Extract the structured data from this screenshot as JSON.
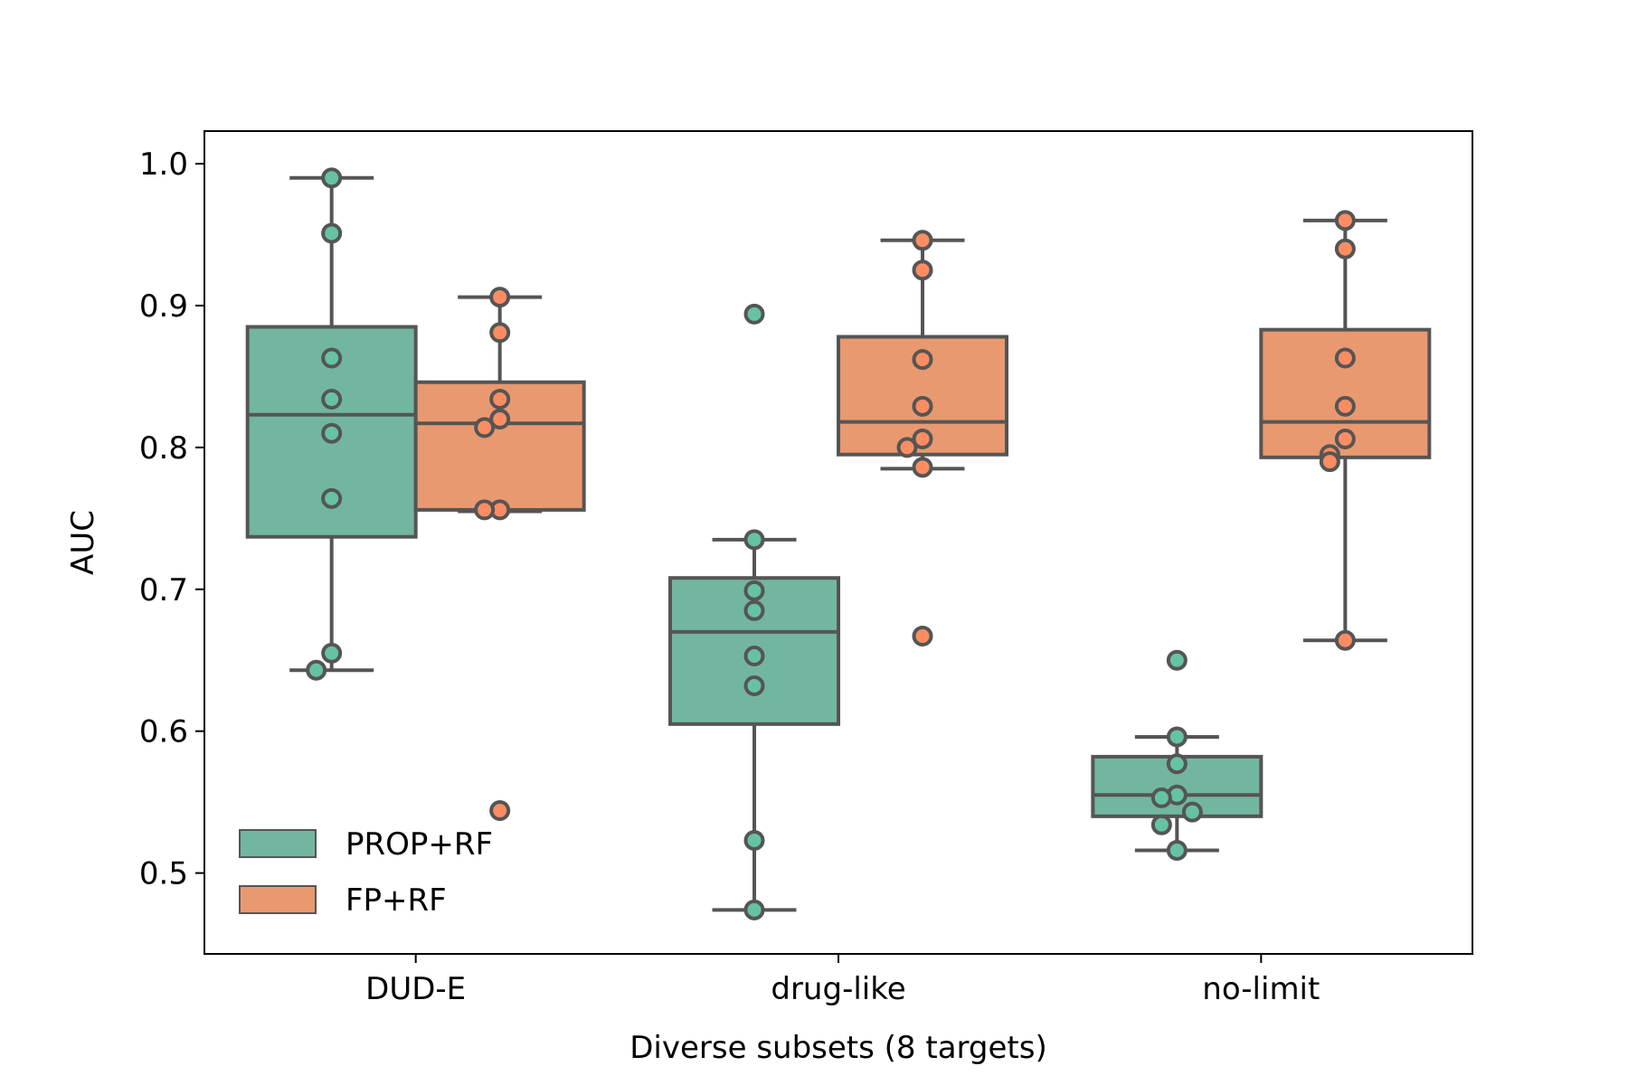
{
  "chart_data": {
    "type": "boxplot",
    "xlabel": "Diverse subsets (8 targets)",
    "ylabel": "AUC",
    "ylim": [
      0.443,
      1.023
    ],
    "yticks": [
      0.5,
      0.6,
      0.7,
      0.8,
      0.9,
      1.0
    ],
    "ytick_labels": [
      "0.5",
      "0.6",
      "0.7",
      "0.8",
      "0.9",
      "1.0"
    ],
    "categories": [
      "DUD-E",
      "drug-like",
      "no-limit"
    ],
    "legend_position": "lower-left",
    "series": [
      {
        "name": "PROP+RF",
        "color": "#72b6a1",
        "point_color": "#66c2a5",
        "boxes": [
          {
            "q1": 0.737,
            "median": 0.823,
            "q3": 0.885,
            "whisker_low": 0.643,
            "whisker_high": 0.99,
            "fliers": []
          },
          {
            "q1": 0.605,
            "median": 0.67,
            "q3": 0.708,
            "whisker_low": 0.474,
            "whisker_high": 0.735,
            "fliers": [
              0.894
            ]
          },
          {
            "q1": 0.54,
            "median": 0.555,
            "q3": 0.582,
            "whisker_low": 0.516,
            "whisker_high": 0.596,
            "fliers": [
              0.65
            ]
          }
        ],
        "points": [
          [
            0.99,
            0.951,
            0.863,
            0.834,
            0.81,
            0.764,
            0.655,
            0.643
          ],
          [
            0.894,
            0.735,
            0.699,
            0.685,
            0.653,
            0.632,
            0.523,
            0.474
          ],
          [
            0.65,
            0.596,
            0.577,
            0.555,
            0.553,
            0.543,
            0.534,
            0.516
          ]
        ]
      },
      {
        "name": "FP+RF",
        "color": "#e9996f",
        "point_color": "#fc8d62",
        "boxes": [
          {
            "q1": 0.756,
            "median": 0.817,
            "q3": 0.846,
            "whisker_low": 0.755,
            "whisker_high": 0.906,
            "fliers": [
              0.544
            ]
          },
          {
            "q1": 0.795,
            "median": 0.818,
            "q3": 0.878,
            "whisker_low": 0.785,
            "whisker_high": 0.946,
            "fliers": [
              0.667
            ]
          },
          {
            "q1": 0.793,
            "median": 0.818,
            "q3": 0.883,
            "whisker_low": 0.664,
            "whisker_high": 0.96,
            "fliers": []
          }
        ],
        "points": [
          [
            0.906,
            0.881,
            0.834,
            0.82,
            0.814,
            0.756,
            0.756,
            0.544
          ],
          [
            0.946,
            0.925,
            0.862,
            0.829,
            0.806,
            0.8,
            0.786,
            0.667
          ],
          [
            0.96,
            0.94,
            0.863,
            0.829,
            0.806,
            0.795,
            0.79,
            0.664
          ]
        ]
      }
    ]
  }
}
